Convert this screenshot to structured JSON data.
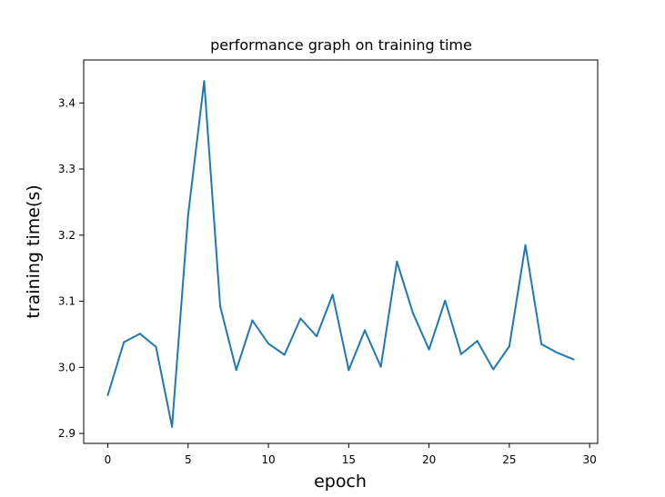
{
  "chart_data": {
    "type": "line",
    "title": "performance graph on training time",
    "xlabel": "epoch",
    "ylabel": "training time(s)",
    "xlim": [
      -1.5,
      30.5
    ],
    "ylim": [
      2.885,
      3.465
    ],
    "xticks": [
      0,
      5,
      10,
      15,
      20,
      25,
      30
    ],
    "xtick_labels": [
      "0",
      "5",
      "10",
      "15",
      "20",
      "25",
      "30"
    ],
    "yticks": [
      2.9,
      3.0,
      3.1,
      3.2,
      3.3,
      3.4
    ],
    "ytick_labels": [
      "2.9",
      "3.0",
      "3.1",
      "3.2",
      "3.3",
      "3.4"
    ],
    "grid": false,
    "line_color": "#1f77b4",
    "series": [
      {
        "x": [
          0,
          1,
          2,
          3,
          4,
          5,
          6,
          7,
          8,
          9,
          10,
          11,
          12,
          13,
          14,
          15,
          16,
          17,
          18,
          19,
          20,
          21,
          22,
          23,
          24,
          25,
          26,
          27,
          28,
          29
        ],
        "values": [
          2.958,
          3.038,
          3.051,
          3.031,
          2.91,
          3.23,
          3.433,
          3.092,
          2.996,
          3.071,
          3.036,
          3.019,
          3.074,
          3.047,
          3.11,
          2.996,
          3.056,
          3.001,
          3.16,
          3.082,
          3.027,
          3.101,
          3.02,
          3.04,
          2.997,
          3.032,
          3.185,
          3.035,
          3.022,
          3.012
        ]
      }
    ]
  }
}
